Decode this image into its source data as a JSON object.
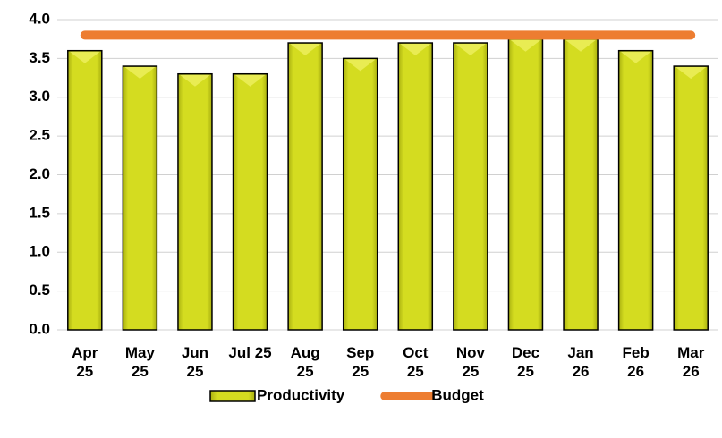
{
  "chart_data": {
    "type": "bar",
    "categories": [
      "Apr 25",
      "May 25",
      "Jun 25",
      "Jul 25",
      "Aug 25",
      "Sep 25",
      "Oct 25",
      "Nov 25",
      "Dec 25",
      "Jan 26",
      "Feb 26",
      "Mar 26"
    ],
    "series": [
      {
        "name": "Productivity",
        "type": "bar",
        "color": "#cfd81c",
        "values": [
          3.6,
          3.4,
          3.3,
          3.3,
          3.7,
          3.5,
          3.7,
          3.7,
          3.75,
          3.75,
          3.6,
          3.4
        ]
      },
      {
        "name": "Budget",
        "type": "line",
        "color": "#ed7d31",
        "values": [
          3.8,
          3.8,
          3.8,
          3.8,
          3.8,
          3.8,
          3.8,
          3.8,
          3.8,
          3.8,
          3.8,
          3.8
        ]
      }
    ],
    "ylim": [
      0,
      4
    ],
    "yticks": [
      {
        "value": 0,
        "label": "0.0"
      },
      0.5,
      {
        "value": 1,
        "label": "1.0"
      },
      1.5,
      {
        "value": 2,
        "label": "2.0"
      },
      2.5,
      {
        "value": 3,
        "label": "3.0"
      },
      3.5,
      {
        "value": 4,
        "label": "4.0"
      }
    ],
    "grid": true,
    "legend": "bottom"
  }
}
